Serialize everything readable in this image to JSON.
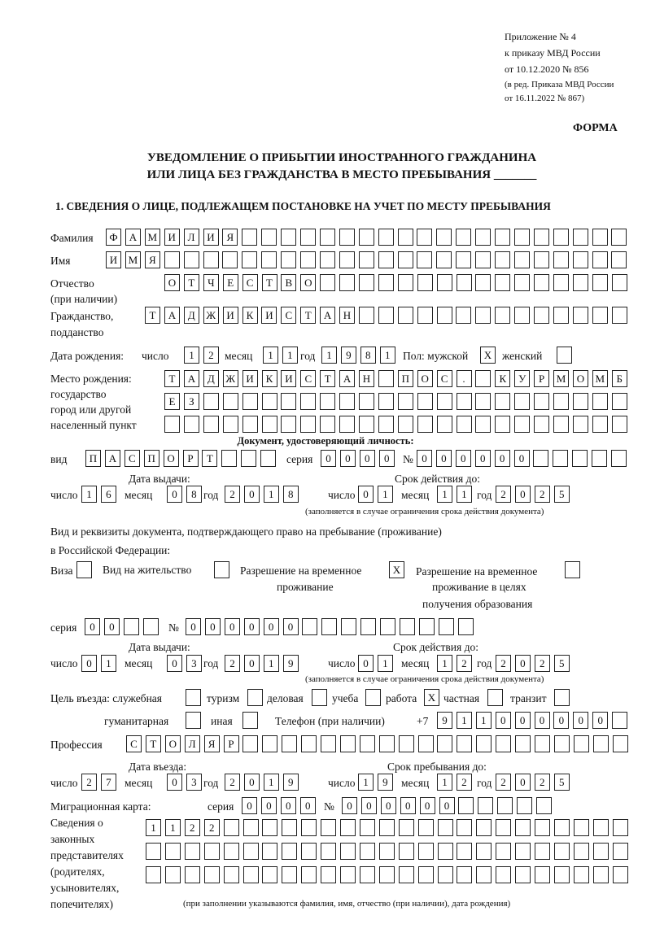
{
  "header": {
    "appendix": "Приложение № 4",
    "order_ref": "к приказу МВД России",
    "order_date": "от 10.12.2020 № 856",
    "edition_1": "(в ред. Приказа МВД России",
    "edition_2": "от 16.11.2022 № 867)",
    "form_label": "ФОРМА",
    "title_1": "УВЕДОМЛЕНИЕ О ПРИБЫТИИ ИНОСТРАННОГО ГРАЖДАНИНА",
    "title_2": "ИЛИ ЛИЦА БЕЗ ГРАЖДАНСТВА В МЕСТО ПРЕБЫВАНИЯ _______",
    "section_1": "1. СВЕДЕНИЯ О ЛИЦЕ, ПОДЛЕЖАЩЕМ ПОСТАНОВКЕ НА УЧЕТ ПО МЕСТУ ПРЕБЫВАНИЯ"
  },
  "labels": {
    "surname": "Фамилия",
    "name": "Имя",
    "patronymic_1": "Отчество",
    "patronymic_2": "(при наличии)",
    "citizenship_1": "Гражданство,",
    "citizenship_2": "подданство",
    "birth_date": "Дата рождения:",
    "day": "число",
    "month": "месяц",
    "year": "год",
    "sex": "Пол: мужской",
    "female": "женский",
    "birthplace_1": "Место рождения:",
    "birthplace_2": "государство",
    "birthplace_3": "город или другой",
    "birthplace_4": "населенный пункт",
    "id_doc": "Документ, удостоверяющий личность:",
    "kind": "вид",
    "series": "серия",
    "number": "№",
    "issue_date": "Дата выдачи:",
    "valid_until": "Срок действия до:",
    "valid_note": "(заполняется в случае ограничения срока действия документа)",
    "permit_doc_1": "Вид и реквизиты документа, подтверждающего право на пребывание (проживание)",
    "permit_doc_2": "в Российской Федерации:",
    "visa": "Виза",
    "residence": "Вид на жительство",
    "temp_residence_1": "Разрешение на временное",
    "temp_residence_2": "проживание",
    "temp_edu_1": "Разрешение на временное",
    "temp_edu_2": "проживание в целях",
    "temp_edu_3": "получения образования",
    "purpose": "Цель въезда: служебная",
    "tourism": "туризм",
    "business": "деловая",
    "study": "учеба",
    "work": "работа",
    "private": "частная",
    "transit": "транзит",
    "humanitarian": "гуманитарная",
    "other": "иная",
    "phone": "Телефон (при наличии)",
    "phone_prefix": "+7",
    "profession": "Профессия",
    "entry_date": "Дата въезда:",
    "stay_until": "Срок пребывания до:",
    "migration_card": "Миграционная карта:",
    "reps_1": "Сведения о",
    "reps_2": "законных",
    "reps_3": "представителях",
    "reps_4": "(родителях,",
    "reps_5": "усыновителях,",
    "reps_6": "попечителях)",
    "reps_note": "(при заполнении указываются фамилия, имя, отчество (при наличии), дата рождения)"
  },
  "fields": {
    "surname": "ФАМИЛИЯ",
    "name": "ИМЯ",
    "patronymic": "ОТЧЕСТВО",
    "citizenship": "ТАДЖИКИСТАН",
    "birth": {
      "day": "12",
      "month": "11",
      "year": "1981"
    },
    "sex_male": "X",
    "sex_female": "",
    "birthplace": [
      "ТАДЖИКИСТАН ПОС. КУРМОМБ",
      "ЕЗ",
      ""
    ],
    "id_doc": {
      "kind": "ПАСПОРТ",
      "series": "0000",
      "number": "000000",
      "issue": {
        "day": "16",
        "month": "08",
        "year": "2018"
      },
      "valid": {
        "day": "01",
        "month": "11",
        "year": "2025"
      }
    },
    "permit_type": {
      "visa": "",
      "residence": "",
      "temp_residence": "X",
      "temp_edu": ""
    },
    "permit": {
      "series": "00",
      "number": "000000",
      "issue": {
        "day": "01",
        "month": "03",
        "year": "2019"
      },
      "valid": {
        "day": "01",
        "month": "12",
        "year": "2025"
      }
    },
    "purpose": {
      "service": "",
      "tourism": "",
      "business": "",
      "study": "",
      "work": "X",
      "private": "",
      "transit": "",
      "humanitarian": "",
      "other": ""
    },
    "phone": "911000000",
    "profession": "СТОЛЯР",
    "entry": {
      "day": "27",
      "month": "03",
      "year": "2019"
    },
    "stay_until": {
      "day": "19",
      "month": "12",
      "year": "2025"
    },
    "migration_card": {
      "series": "0000",
      "number": "000000"
    },
    "representatives": [
      "1122",
      "",
      ""
    ]
  }
}
